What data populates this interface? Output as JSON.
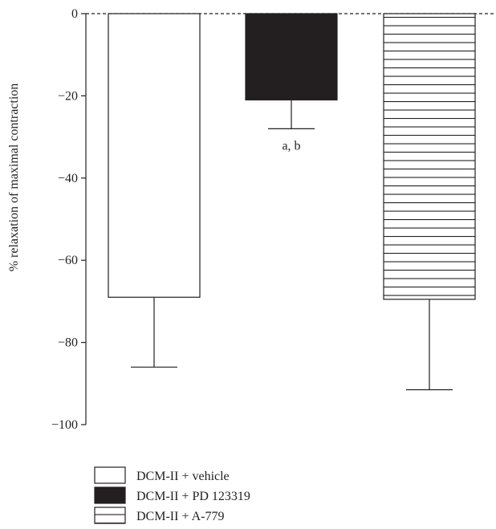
{
  "chart_data": {
    "type": "bar",
    "ylabel": "% relaxation of maximal contraction",
    "xlabel": "",
    "ylim": [
      -100,
      0
    ],
    "yticks": [
      0,
      -20,
      -40,
      -60,
      -80,
      -100
    ],
    "ytick_labels": [
      "0",
      "−20",
      "−40",
      "−60",
      "−80",
      "−100"
    ],
    "baseline_style": "dashed",
    "grid": false,
    "legend_placement": "bottom-left",
    "series": [
      {
        "name": "DCM-II + vehicle",
        "value": -69,
        "error": 17,
        "fill": "white",
        "annotation": ""
      },
      {
        "name": "DCM-II + PD 123319",
        "value": -21,
        "error": 7,
        "fill": "black",
        "annotation": "a, b"
      },
      {
        "name": "DCM-II + A-779",
        "value": -69.5,
        "error": 22,
        "fill": "horizontal-stripes",
        "annotation": ""
      }
    ],
    "colors": {
      "ink": "#231f20",
      "white": "#ffffff",
      "black": "#231f20"
    }
  }
}
